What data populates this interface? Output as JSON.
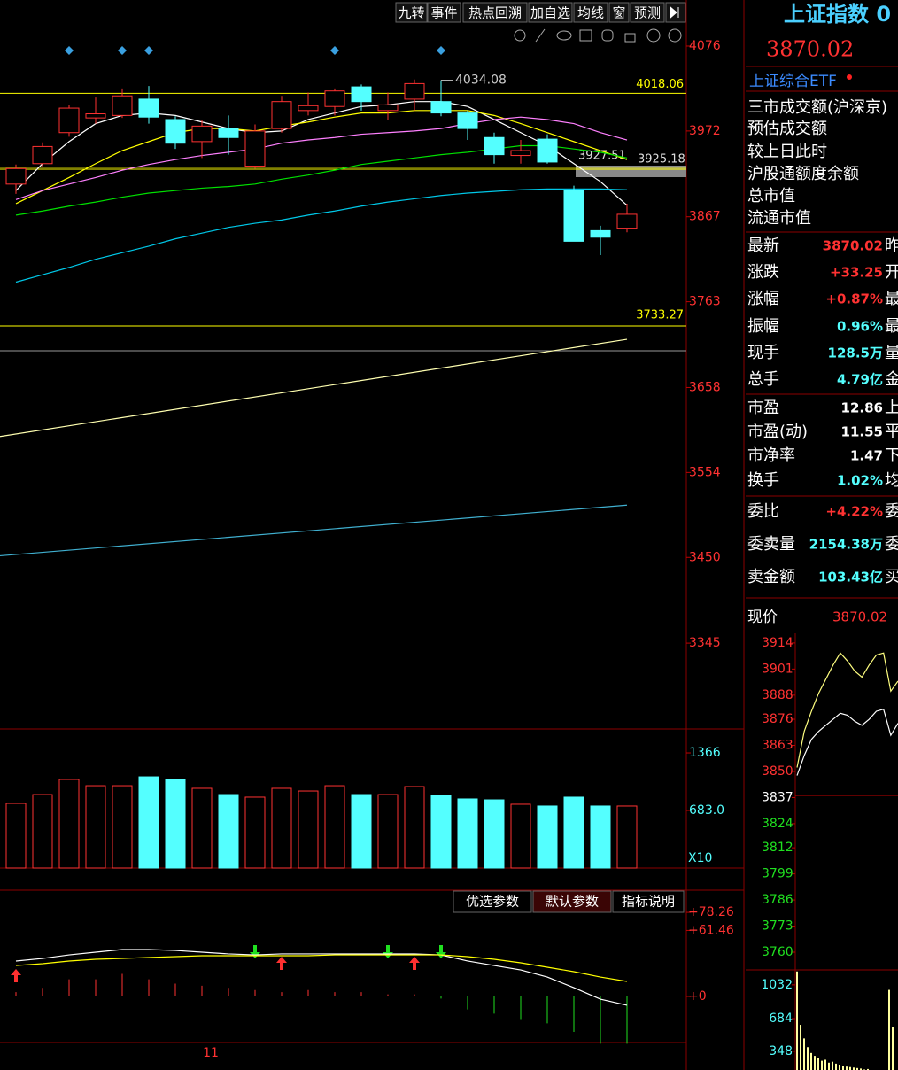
{
  "toolbar": {
    "buttons": [
      "九转",
      "事件",
      "热点回溯",
      "加自选",
      "均线",
      "窗",
      "预测"
    ]
  },
  "main": {
    "ylim": [
      3241,
      4102
    ],
    "yticks": [
      3345,
      3450,
      3554,
      3658,
      3763,
      3867,
      3972,
      4076
    ],
    "candles": [
      {
        "o": 3907,
        "h": 3931,
        "l": 3895,
        "c": 3926
      },
      {
        "o": 3932,
        "h": 3958,
        "l": 3928,
        "c": 3953
      },
      {
        "o": 3970,
        "h": 4004,
        "l": 3965,
        "c": 4000
      },
      {
        "o": 3988,
        "h": 4013,
        "l": 3981,
        "c": 3993
      },
      {
        "o": 3991,
        "h": 4024,
        "l": 3988,
        "c": 4015
      },
      {
        "o": 4011,
        "h": 4027,
        "l": 3981,
        "c": 3989
      },
      {
        "o": 3986,
        "h": 3990,
        "l": 3950,
        "c": 3957
      },
      {
        "o": 3959,
        "h": 3986,
        "l": 3939,
        "c": 3978
      },
      {
        "o": 3975,
        "h": 3991,
        "l": 3943,
        "c": 3964
      },
      {
        "o": 3929,
        "h": 3980,
        "l": 3926,
        "c": 3972
      },
      {
        "o": 3975,
        "h": 4015,
        "l": 3970,
        "c": 4008
      },
      {
        "o": 3997,
        "h": 4019,
        "l": 3991,
        "c": 4003
      },
      {
        "o": 4002,
        "h": 4024,
        "l": 3991,
        "c": 4021
      },
      {
        "o": 4026,
        "h": 4029,
        "l": 3997,
        "c": 4008
      },
      {
        "o": 3997,
        "h": 4019,
        "l": 3986,
        "c": 4004
      },
      {
        "o": 4011,
        "h": 4035,
        "l": 3997,
        "c": 4030
      },
      {
        "o": 4008,
        "h": 4034.08,
        "l": 3990,
        "c": 3994
      },
      {
        "o": 3994,
        "h": 3997,
        "l": 3961,
        "c": 3975
      },
      {
        "o": 3964,
        "h": 3970,
        "l": 3932,
        "c": 3943
      },
      {
        "o": 3942,
        "h": 3961,
        "l": 3932,
        "c": 3948
      },
      {
        "o": 3962,
        "h": 3968,
        "l": 3932,
        "c": 3934
      },
      {
        "o": 3899,
        "h": 3905,
        "l": 3837,
        "c": 3837
      },
      {
        "o": 3850,
        "h": 3856,
        "l": 3820,
        "c": 3842
      },
      {
        "o": 3853,
        "h": 3883,
        "l": 3848,
        "c": 3870.02
      }
    ],
    "ma_lines": [
      {
        "color": "#ffffff",
        "values": [
          3899,
          3932,
          3959,
          3981,
          3991,
          3994,
          3991,
          3983,
          3975,
          3970,
          3972,
          3986,
          3994,
          4002,
          4004,
          4008,
          4008,
          4002,
          3986,
          3970,
          3954,
          3932,
          3910,
          3881
        ]
      },
      {
        "color": "#ffff00",
        "values": [
          3883,
          3899,
          3915,
          3932,
          3948,
          3959,
          3970,
          3975,
          3975,
          3972,
          3978,
          3983,
          3989,
          3994,
          3994,
          3997,
          3997,
          3997,
          3991,
          3981,
          3970,
          3959,
          3948,
          3937
        ]
      },
      {
        "color": "#ff80ff",
        "values": [
          3888,
          3899,
          3907,
          3915,
          3924,
          3931,
          3937,
          3942,
          3946,
          3950,
          3957,
          3961,
          3964,
          3968,
          3970,
          3972,
          3975,
          3981,
          3986,
          3989,
          3986,
          3981,
          3970,
          3961
        ]
      },
      {
        "color": "#00e000",
        "values": [
          3869,
          3874,
          3880,
          3885,
          3891,
          3896,
          3899,
          3902,
          3904,
          3907,
          3913,
          3918,
          3924,
          3931,
          3935,
          3939,
          3943,
          3946,
          3950,
          3954,
          3954,
          3950,
          3946,
          3939
        ]
      },
      {
        "color": "#00c8e8",
        "values": [
          3787,
          3796,
          3805,
          3815,
          3823,
          3831,
          3840,
          3847,
          3854,
          3859,
          3863,
          3869,
          3874,
          3880,
          3885,
          3889,
          3893,
          3896,
          3898,
          3900,
          3901,
          3901,
          3901,
          3900
        ]
      }
    ],
    "long_lines": [
      {
        "color": "#ffffb0",
        "start": 3598,
        "end": 3717
      },
      {
        "color": "#40b0d0",
        "start": 3452,
        "end": 3514
      }
    ],
    "price_lines": [
      {
        "value": 4018.06,
        "color": "#ffff00"
      },
      {
        "value": 3733.27,
        "color": "#ffff00"
      },
      {
        "value": 3927.51,
        "color": "#ffff00"
      },
      {
        "value": 3925.18,
        "color": "#ffff00"
      }
    ]
  },
  "volume": {
    "ylim": [
      0,
      1629
    ],
    "yticks": [
      1366,
      {
        "value": 683,
        "label": "683.0"
      }
    ],
    "unit_label": "X10",
    "values": [
      767,
      872,
      1051,
      977,
      977,
      1082,
      1051,
      946,
      872,
      841,
      946,
      914,
      977,
      872,
      872,
      967,
      862,
      820,
      809,
      757,
      736,
      841,
      736,
      736
    ]
  },
  "indicator": {
    "buttons": [
      "优选参数",
      "默认参数",
      "指标说明"
    ],
    "ylim": [
      -61.8,
      98.9
    ],
    "yticks": [
      {
        "value": 78.26,
        "label": "+78.26"
      },
      {
        "value": 61.46,
        "label": "+61.46"
      },
      {
        "value": 0,
        "label": "+0"
      }
    ],
    "lines": [
      {
        "color": "#ffffff",
        "values": [
          33.0,
          35.4,
          38.7,
          41.2,
          43.7,
          43.7,
          42.8,
          41.2,
          39.6,
          38.7,
          39.6,
          39.6,
          39.6,
          39.6,
          39.6,
          39.6,
          38.7,
          33.0,
          28.8,
          24.7,
          18.1,
          8.2,
          -2.5,
          -8.2
        ]
      },
      {
        "color": "#ffff00",
        "values": [
          28.8,
          30.5,
          33.0,
          34.6,
          35.4,
          36.3,
          37.1,
          37.9,
          37.9,
          37.9,
          37.9,
          37.9,
          38.7,
          38.7,
          38.7,
          38.7,
          38.7,
          37.1,
          34.6,
          31.3,
          27.2,
          23.1,
          18.1,
          14.0
        ]
      }
    ],
    "bars": [
      4,
      8,
      16,
      16,
      21,
      16,
      12,
      10,
      8,
      6,
      4,
      6,
      4,
      4,
      2,
      2,
      -2,
      -12,
      -16,
      -21,
      -25,
      -33,
      -44,
      -44
    ]
  },
  "x_axis": {
    "label": "11"
  },
  "side": {
    "title": "上证指数 0",
    "price": "3870.02",
    "etf": "上证综合ETF",
    "info_rows": [
      "三市成交额(沪深京)",
      "预估成交额",
      "较上日此时",
      "沪股通额度余额",
      "总市值",
      "流通市值"
    ],
    "stats": [
      [
        {
          "label": "最新",
          "value": "3870.02",
          "tail": "昨",
          "color": "#ff3232"
        },
        {
          "label": "涨跌",
          "value": "+33.25",
          "tail": "开",
          "color": "#ff3232"
        },
        {
          "label": "涨幅",
          "value": "+0.87%",
          "tail": "最",
          "color": "#ff3232"
        },
        {
          "label": "振幅",
          "value": "0.96%",
          "tail": "最",
          "color": "#54ffff"
        },
        {
          "label": "现手",
          "value": "128.5万",
          "tail": "量",
          "color": "#54ffff"
        },
        {
          "label": "总手",
          "value": "4.79亿",
          "tail": "金",
          "color": "#54ffff"
        }
      ],
      [
        {
          "label": "市盈",
          "value": "12.86",
          "tail": "上",
          "color": "#ffffff"
        },
        {
          "label": "市盈(动)",
          "value": "11.55",
          "tail": "平",
          "color": "#ffffff"
        },
        {
          "label": "市净率",
          "value": "1.47",
          "tail": "下",
          "color": "#ffffff"
        },
        {
          "label": "换手",
          "value": "1.02%",
          "tail": "均",
          "color": "#54ffff"
        }
      ],
      [
        {
          "label": "委比",
          "value": "+4.22%",
          "tail": "委",
          "color": "#ff3232"
        },
        {
          "label": "委卖量",
          "value": "2154.38万",
          "tail": "委",
          "color": "#54ffff"
        },
        {
          "label": "卖金额",
          "value": "103.43亿",
          "tail": "买",
          "color": "#54ffff"
        }
      ]
    ],
    "mini": {
      "price_label": "现价",
      "price": "3870.02",
      "ylim": [
        3757.8,
        3916.6
      ],
      "yticks": [
        3914,
        3901,
        3888,
        3876,
        3863,
        3850,
        3837,
        3824,
        3812,
        3799,
        3786,
        3773,
        3760
      ],
      "lines": [
        {
          "color": "#ffff80",
          "values": [
            3852,
            3870,
            3880,
            3889,
            3896,
            3903,
            3909,
            3905,
            3900,
            3897,
            3903,
            3908,
            3909,
            3890,
            3895
          ]
        },
        {
          "color": "#ffffff",
          "values": [
            3848,
            3858,
            3866,
            3870,
            3873,
            3876,
            3879,
            3878,
            3875,
            3873,
            3876,
            3880,
            3881,
            3868,
            3874
          ]
        }
      ],
      "vol_ylim": [
        0,
        1186
      ],
      "vol_yticks": [
        1032,
        684,
        348
      ],
      "vol_values": [
        1170,
        620,
        480,
        390,
        330,
        300,
        280,
        250,
        260,
        230,
        240,
        220,
        210,
        200,
        190,
        185,
        180,
        175,
        170,
        160,
        165,
        150,
        155,
        140,
        145,
        130,
        980,
        600
      ]
    }
  }
}
